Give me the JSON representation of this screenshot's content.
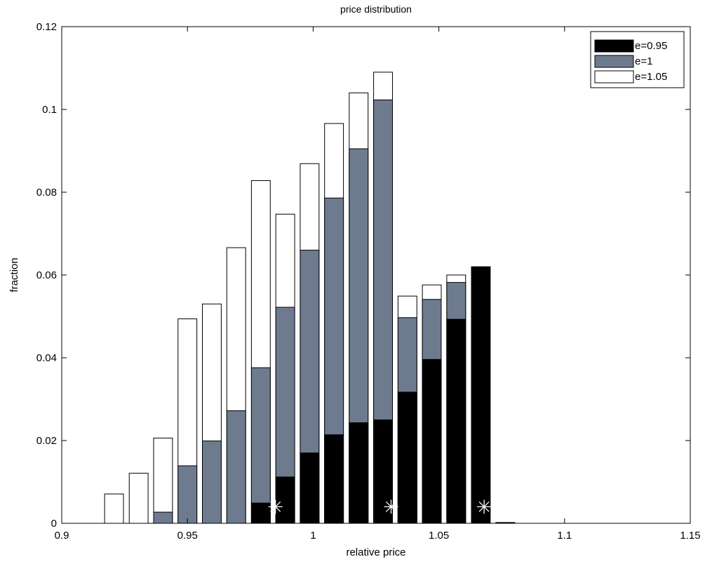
{
  "chart_data": {
    "type": "bar",
    "title": "price distribution",
    "xlabel": "relative price",
    "ylabel": "fraction",
    "xlim": [
      0.9,
      1.15
    ],
    "ylim": [
      0,
      0.12
    ],
    "grid": false,
    "legend_position": "top-right",
    "xticks": [
      0.9,
      0.95,
      1,
      1.05,
      1.1,
      1.15
    ],
    "xtick_labels": [
      "0.9",
      "0.95",
      "1",
      "1.05",
      "1.1",
      "1.15"
    ],
    "yticks": [
      0,
      0.02,
      0.04,
      0.06,
      0.08,
      0.1,
      0.12
    ],
    "ytick_labels": [
      "0",
      "0.02",
      "0.04",
      "0.06",
      "0.08",
      "0.1",
      "0.12"
    ],
    "bar_width": 0.0075,
    "x": [
      0.9208,
      0.9306,
      0.9403,
      0.95,
      0.9597,
      0.9694,
      0.9792,
      0.9889,
      0.9986,
      1.0083,
      1.0181,
      1.0278,
      1.0375,
      1.0472,
      1.0569,
      1.0667,
      1.0764
    ],
    "series": [
      {
        "name": "e=0.95",
        "color": "#000000",
        "values": [
          0,
          0,
          0,
          0,
          0,
          0,
          0.0049,
          0.0112,
          0.017,
          0.0214,
          0.0243,
          0.025,
          0.0317,
          0.0396,
          0.0493,
          0.062,
          0.0002
        ]
      },
      {
        "name": "e=1",
        "color": "#6e7b8f",
        "values": [
          0,
          0,
          0.0027,
          0.0139,
          0.0199,
          0.0272,
          0.0376,
          0.0522,
          0.066,
          0.0786,
          0.0905,
          0.1023,
          0.0497,
          0.0541,
          0.0582,
          0,
          0
        ]
      },
      {
        "name": "e=1.05",
        "color": "#ffffff",
        "values": [
          0.0071,
          0.0121,
          0.0206,
          0.0494,
          0.053,
          0.0666,
          0.0828,
          0.0747,
          0.0869,
          0.0966,
          0.104,
          0.109,
          0.0549,
          0.0576,
          0.06,
          0,
          0
        ]
      }
    ],
    "markers": {
      "symbol": "asterisk",
      "color": "#ffffff",
      "x": [
        0.985,
        1.031,
        1.068
      ],
      "y": [
        0.004,
        0.004,
        0.004
      ]
    }
  }
}
